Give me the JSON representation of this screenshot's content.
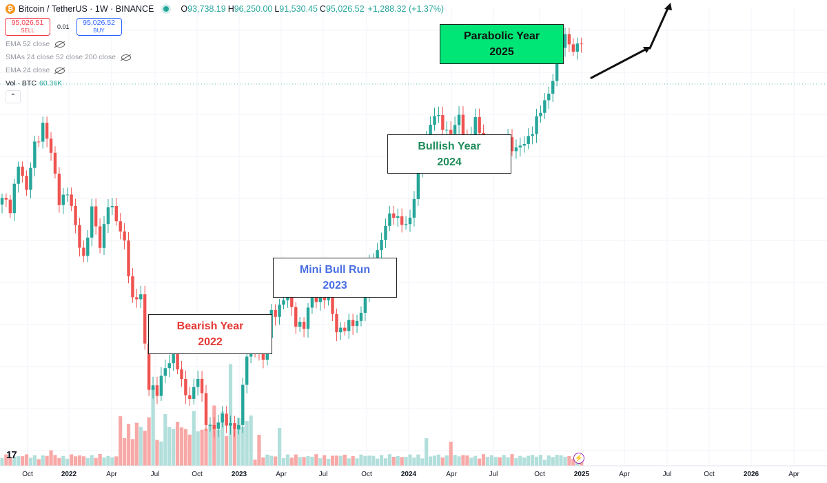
{
  "header": {
    "symbol": "Bitcoin / TetherUS · 1W · BINANCE",
    "o_label": "O",
    "o_value": "93,738.19",
    "h_label": "H",
    "h_value": "96,250.00",
    "l_label": "L",
    "l_value": "91,530.45",
    "c_label": "C",
    "c_value": "95,026.52",
    "change": "+1,288.32 (+1.37%)"
  },
  "trade": {
    "sell_price": "95,026.51",
    "sell_label": "SELL",
    "spread": "0.01",
    "buy_price": "95,026.52",
    "buy_label": "BUY"
  },
  "indicators": {
    "ema52": "EMA 52 close",
    "smas": "SMAs 24 close 52 close 200 close",
    "ema24": "EMA 24 close",
    "vol_label": "Vol · BTC",
    "vol_value": "60.36K"
  },
  "collapse_glyph": "⌃",
  "tv_logo": "17",
  "colors": {
    "up": "#26a69a",
    "down": "#ef5350",
    "vol_up": "#b2dfdb",
    "vol_down": "#f7a9a7",
    "accent": "#00e676"
  },
  "annotations": [
    {
      "key": "bearish",
      "line1": "Bearish Year",
      "line2": "2022",
      "color": "#e53935"
    },
    {
      "key": "mini",
      "line1": "Mini Bull Run",
      "line2": "2023",
      "color": "#4a6fe3"
    },
    {
      "key": "bullish",
      "line1": "Bullish Year",
      "line2": "2024",
      "color": "#1e8c5a"
    },
    {
      "key": "parabolic",
      "line1": "Parabolic Year",
      "line2": "2025",
      "color": "#111111"
    }
  ],
  "chart_data": {
    "type": "candlestick",
    "title": "",
    "xlabel": "",
    "ylabel": "",
    "grid": true,
    "x_ticks": [
      "Oct",
      "2022",
      "Apr",
      "Jul",
      "Oct",
      "2023",
      "Apr",
      "Jul",
      "Oct",
      "2024",
      "Apr",
      "Jul",
      "Oct",
      "2025",
      "Apr",
      "Jul",
      "Oct",
      "2026",
      "Apr"
    ],
    "anchors": [
      [
        0,
        47000
      ],
      [
        2,
        44000
      ],
      [
        4,
        56000
      ],
      [
        6,
        48000
      ],
      [
        8,
        60000
      ],
      [
        10,
        66000
      ],
      [
        12,
        57000
      ],
      [
        14,
        47000
      ],
      [
        16,
        48000
      ],
      [
        18,
        41000
      ],
      [
        20,
        36000
      ],
      [
        22,
        44000
      ],
      [
        24,
        38000
      ],
      [
        26,
        46000
      ],
      [
        28,
        42000
      ],
      [
        30,
        39000
      ],
      [
        32,
        29000
      ],
      [
        34,
        30000
      ],
      [
        36,
        20000
      ],
      [
        38,
        19000
      ],
      [
        40,
        22000
      ],
      [
        42,
        23000
      ],
      [
        44,
        20000
      ],
      [
        46,
        19000
      ],
      [
        48,
        20500
      ],
      [
        50,
        17000
      ],
      [
        52,
        16500
      ],
      [
        54,
        17000
      ],
      [
        56,
        16800
      ],
      [
        58,
        16500
      ],
      [
        60,
        23000
      ],
      [
        62,
        24000
      ],
      [
        64,
        22000
      ],
      [
        66,
        28000
      ],
      [
        68,
        28500
      ],
      [
        70,
        29800
      ],
      [
        72,
        27000
      ],
      [
        74,
        25800
      ],
      [
        76,
        30200
      ],
      [
        78,
        30000
      ],
      [
        80,
        29300
      ],
      [
        82,
        26000
      ],
      [
        84,
        25900
      ],
      [
        86,
        26200
      ],
      [
        88,
        28000
      ],
      [
        90,
        34000
      ],
      [
        92,
        37000
      ],
      [
        94,
        42000
      ],
      [
        96,
        43000
      ],
      [
        98,
        42500
      ],
      [
        100,
        42000
      ],
      [
        102,
        52000
      ],
      [
        104,
        62000
      ],
      [
        106,
        68000
      ],
      [
        108,
        66000
      ],
      [
        110,
        63000
      ],
      [
        112,
        67000
      ],
      [
        114,
        60000
      ],
      [
        116,
        67000
      ],
      [
        118,
        57000
      ],
      [
        120,
        60000
      ],
      [
        122,
        57000
      ],
      [
        124,
        62000
      ],
      [
        126,
        58000
      ],
      [
        128,
        60000
      ],
      [
        130,
        65000
      ],
      [
        132,
        69000
      ],
      [
        134,
        76000
      ],
      [
        136,
        90000
      ],
      [
        138,
        97000
      ],
      [
        140,
        94000
      ],
      [
        142,
        95026
      ]
    ],
    "volume_spikes": [
      [
        12,
        0.9
      ],
      [
        30,
        1.6
      ],
      [
        33,
        2.5
      ],
      [
        37,
        4.6
      ],
      [
        38,
        1.5
      ],
      [
        48,
        2.0
      ],
      [
        52,
        3.5
      ],
      [
        56,
        5.9
      ],
      [
        60,
        2.6
      ],
      [
        63,
        1.8
      ],
      [
        68,
        2.2
      ],
      [
        104,
        1.6
      ],
      [
        110,
        1.4
      ]
    ],
    "ylim": [
      15000,
      110000
    ]
  }
}
